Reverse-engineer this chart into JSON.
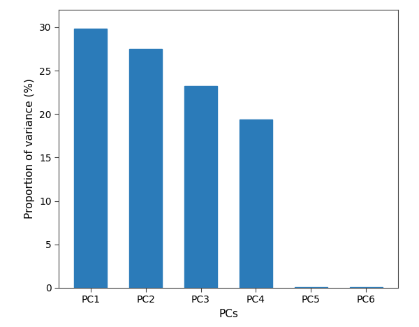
{
  "categories": [
    "PC1",
    "PC2",
    "PC3",
    "PC4",
    "PC5",
    "PC6"
  ],
  "values": [
    29.8,
    27.5,
    23.2,
    19.4,
    0.07,
    0.07
  ],
  "bar_color": "#2b7bb9",
  "xlabel": "PCs",
  "ylabel": "Proportion of variance (%)",
  "ylim": [
    0,
    32
  ],
  "yticks": [
    0,
    5,
    10,
    15,
    20,
    25,
    30
  ],
  "background_color": "#ffffff",
  "figsize": [
    6.0,
    4.68
  ],
  "dpi": 100,
  "spine_color": "#444444",
  "tick_color": "#444444"
}
